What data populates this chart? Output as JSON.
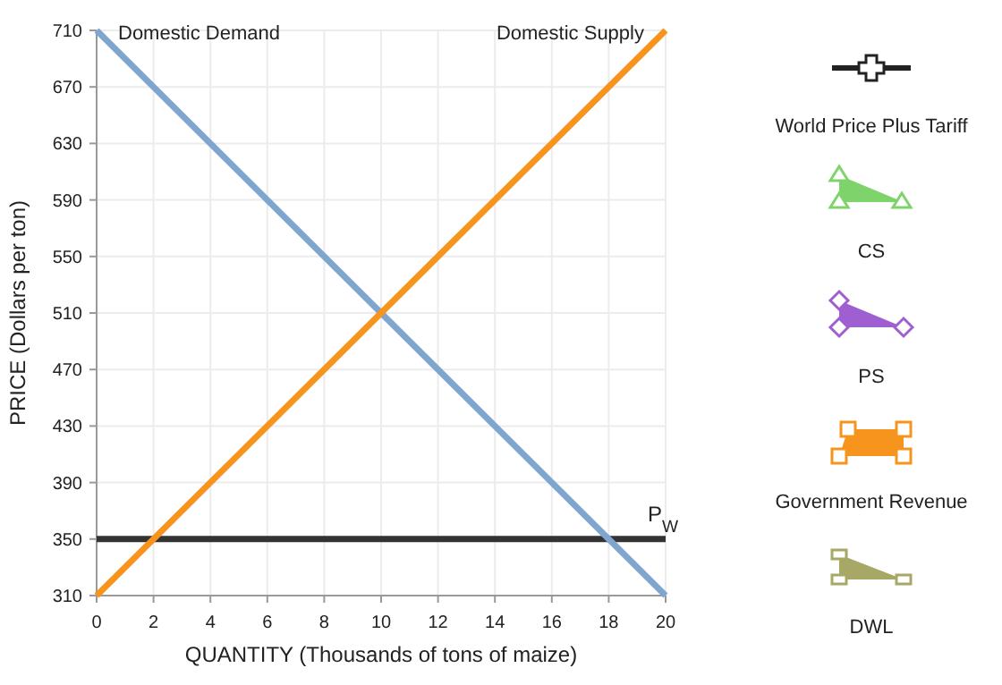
{
  "chart_data": {
    "type": "line",
    "xlabel": "QUANTITY (Thousands of tons of maize)",
    "ylabel": "PRICE (Dollars per ton)",
    "xlim": [
      0,
      20
    ],
    "xticks": [
      0,
      2,
      4,
      6,
      8,
      10,
      12,
      14,
      16,
      18,
      20
    ],
    "ylim": [
      310,
      710
    ],
    "yticks": [
      310,
      350,
      390,
      430,
      470,
      510,
      550,
      590,
      630,
      670,
      710
    ],
    "x": [
      0,
      20
    ],
    "grid": true,
    "marker": "none",
    "line_style": "solid",
    "series": [
      {
        "name": "Domestic Demand",
        "color": "#7ea6cf",
        "values": [
          710,
          310
        ]
      },
      {
        "name": "Domestic Supply",
        "color": "#f7941d",
        "values": [
          310,
          710
        ]
      }
    ],
    "ref_lines": [
      {
        "axis": "y",
        "value": 350,
        "label": "P$_{W}$",
        "color": "#333333"
      }
    ],
    "annotations": [
      "World Price Plus Tariff",
      "CS",
      "PS",
      "Government Revenue",
      "DWL"
    ]
  }
}
